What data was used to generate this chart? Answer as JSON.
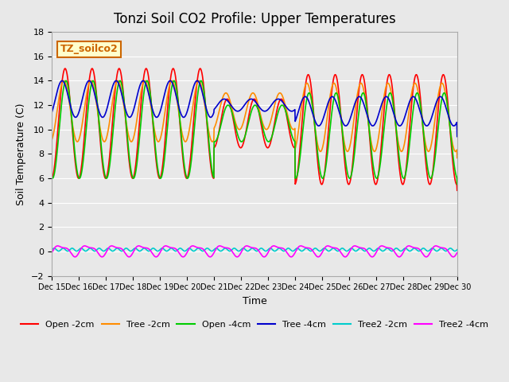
{
  "title": "Tonzi Soil CO2 Profile: Upper Temperatures",
  "xlabel": "Time",
  "ylabel": "Soil Temperature (C)",
  "ylim": [
    -2,
    18
  ],
  "yticks": [
    -2,
    0,
    2,
    4,
    6,
    8,
    10,
    12,
    14,
    16,
    18
  ],
  "xlim": [
    0,
    15
  ],
  "xtick_labels": [
    "Dec 15",
    "Dec 16",
    "Dec 17",
    "Dec 18",
    "Dec 19",
    "Dec 20",
    "Dec 21",
    "Dec 22",
    "Dec 23",
    "Dec 24",
    "Dec 25",
    "Dec 26",
    "Dec 27",
    "Dec 28",
    "Dec 29",
    "Dec 30"
  ],
  "background_color": "#e8e8e8",
  "plot_bg_color": "#e8e8e8",
  "series_colors": [
    "#ff0000",
    "#ff8c00",
    "#00cc00",
    "#0000cc",
    "#00cccc",
    "#ff00ff"
  ],
  "series_labels": [
    "Open -2cm",
    "Tree -2cm",
    "Open -4cm",
    "Tree -4cm",
    "Tree2 -2cm",
    "Tree2 -4cm"
  ],
  "watermark": "TZ_soilco2",
  "watermark_color": "#cc6600",
  "watermark_bg": "#ffffcc"
}
